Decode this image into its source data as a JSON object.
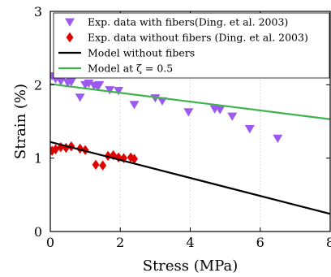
{
  "chart_data": {
    "type": "scatter",
    "xlabel": "Stress (MPa)",
    "ylabel": "Strain (%)",
    "xlim": [
      0,
      8
    ],
    "ylim": [
      0,
      3
    ],
    "xticks": [
      0,
      2,
      4,
      6,
      8
    ],
    "yticks": [
      0,
      1,
      2,
      3
    ],
    "x_tick_labels": [
      "0",
      "2",
      "4",
      "6",
      "8"
    ],
    "y_tick_labels": [
      "0",
      "1",
      "2",
      "3"
    ],
    "grid": "vertical dotted",
    "legend_position": "top",
    "series": [
      {
        "name": "Exp. data with fibers(Ding. et al. 2003)",
        "kind": "scatter",
        "marker": "triangle-down",
        "color": "#9b59ef",
        "x": [
          0.05,
          0.15,
          0.3,
          0.5,
          0.6,
          0.85,
          1.0,
          1.1,
          1.25,
          1.35,
          1.4,
          1.7,
          1.95,
          2.4,
          3.0,
          3.2,
          3.95,
          4.7,
          4.85,
          5.2,
          5.7,
          6.5
        ],
        "y": [
          2.12,
          2.08,
          2.05,
          2.03,
          2.04,
          1.83,
          2.0,
          2.02,
          1.99,
          1.98,
          2.0,
          1.93,
          1.92,
          1.73,
          1.82,
          1.78,
          1.63,
          1.67,
          1.66,
          1.57,
          1.4,
          1.27
        ]
      },
      {
        "name": "Exp. data without fibers (Ding. et al. 2003)",
        "kind": "scatter",
        "marker": "diamond",
        "color": "#e00000",
        "x": [
          0.05,
          0.15,
          0.3,
          0.45,
          0.6,
          0.85,
          1.0,
          1.3,
          1.5,
          1.65,
          1.8,
          1.95,
          2.1,
          2.3,
          2.4
        ],
        "y": [
          1.1,
          1.12,
          1.15,
          1.14,
          1.16,
          1.13,
          1.11,
          0.91,
          0.9,
          1.03,
          1.04,
          1.01,
          1.0,
          1.01,
          0.99
        ]
      },
      {
        "name": "Model without fibers",
        "kind": "line",
        "color": "#000000",
        "x": [
          0,
          8
        ],
        "y": [
          1.22,
          0.24
        ]
      },
      {
        "name": "Model at ζ = 0.5",
        "kind": "line",
        "color": "#3cb44b",
        "x": [
          0,
          8
        ],
        "y": [
          2.01,
          1.53
        ]
      }
    ]
  }
}
